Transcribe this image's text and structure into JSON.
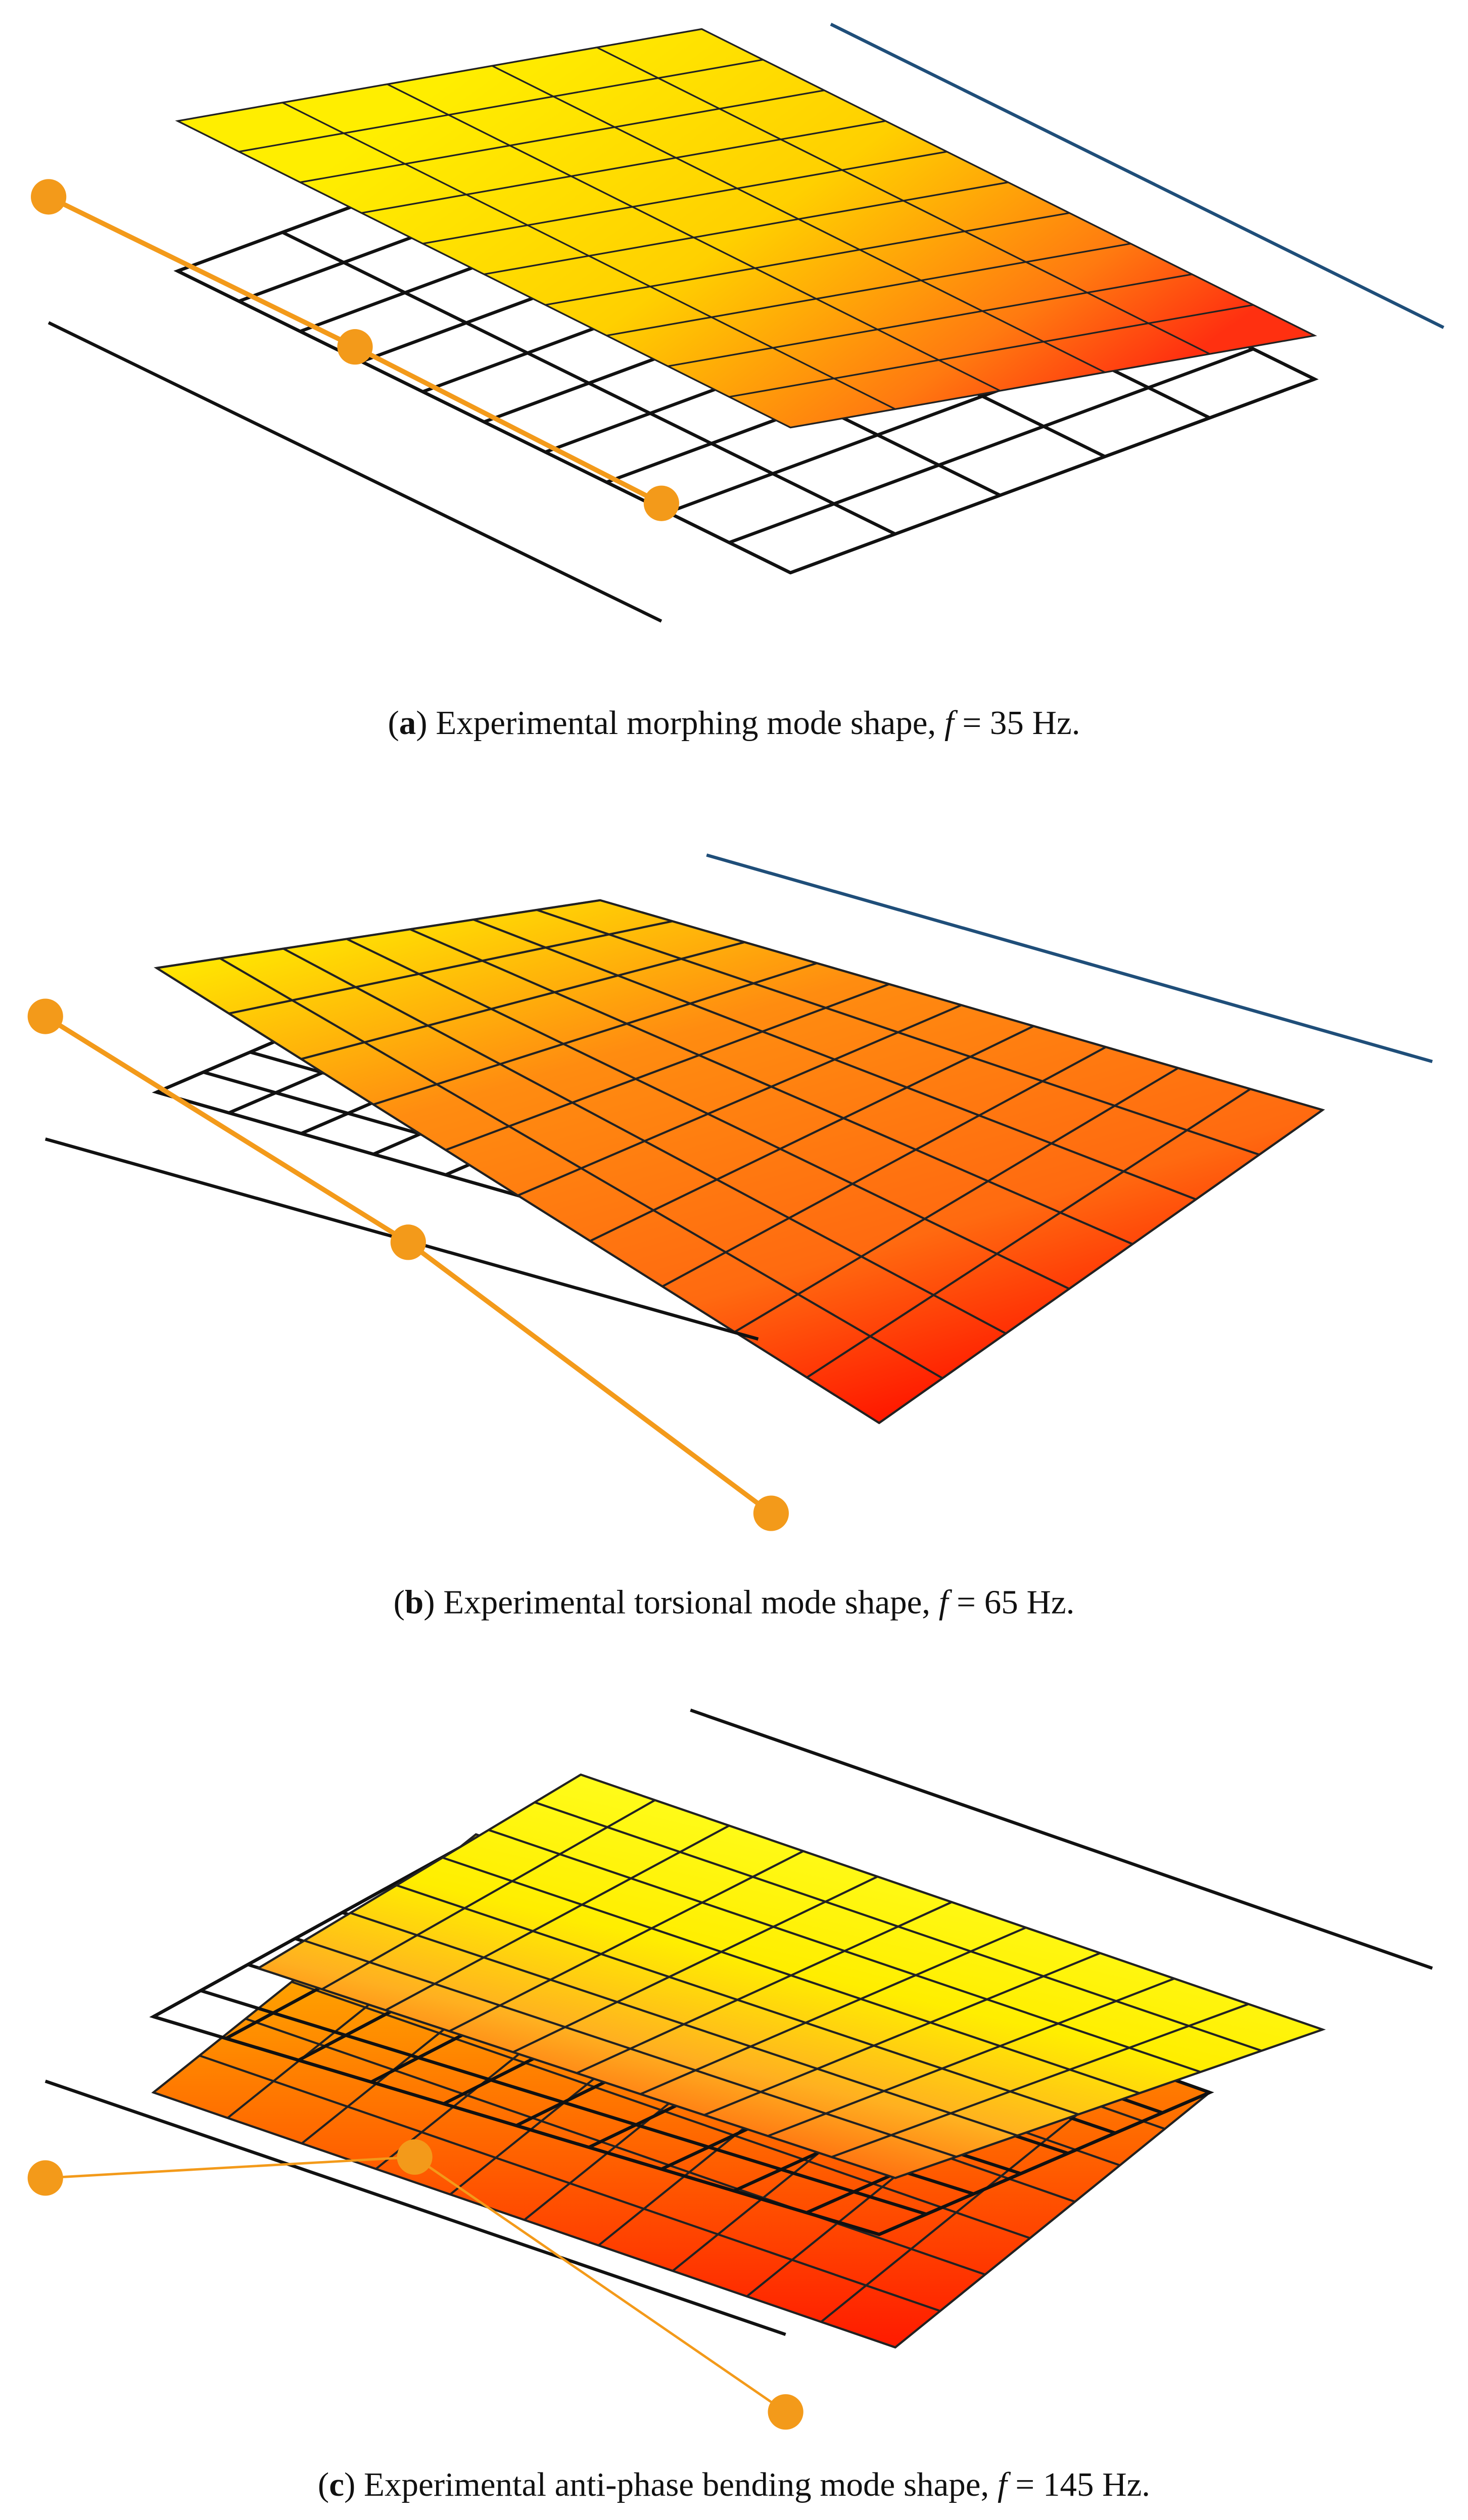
{
  "panels": [
    {
      "caption": [
        "(",
        "a",
        ") Experimental morphing mode shape, ",
        "f",
        " = 35 Hz."
      ]
    },
    {
      "caption": [
        "(",
        "b",
        ") Experimental torsional mode shape, ",
        "f",
        " = 65 Hz."
      ]
    },
    {
      "caption": [
        "(",
        "c",
        ") Experimental anti-phase bending mode shape, ",
        "f",
        " = 145 Hz."
      ]
    }
  ]
}
